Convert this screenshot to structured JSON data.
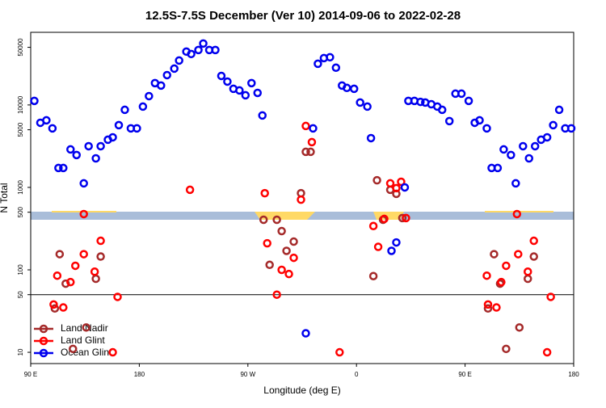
{
  "chart_data": {
    "type": "scatter",
    "title": "12.5S-7.5S December (Ver 10)   2014-09-06 to 2022-02-28",
    "x_label": "Longitude (deg E)",
    "y_label": "N Total",
    "log_y": true,
    "legend": "bottomleft",
    "hlines": [
      50
    ],
    "xlim": [
      90,
      540
    ],
    "xticks": [
      {
        "value": 90,
        "label": "90 E"
      },
      {
        "value": 180,
        "label": "180"
      },
      {
        "value": 270,
        "label": "90 W"
      },
      {
        "value": 360,
        "label": "0"
      },
      {
        "value": 450,
        "label": "90 E"
      },
      {
        "value": 540,
        "label": "180"
      }
    ],
    "ylim": [
      7.3,
      76000
    ],
    "yticks": [
      10,
      50,
      100,
      500,
      1000,
      5000,
      10000,
      50000
    ],
    "series": [
      {
        "name": "Land Nadir",
        "color": "#a52a2a",
        "x": [
          110,
          114,
          119,
          125,
          136,
          144,
          148,
          283,
          288,
          294,
          298,
          302,
          308,
          314,
          318,
          322,
          374,
          377,
          382,
          388,
          393,
          398,
          469,
          474,
          479,
          484,
          495,
          502,
          507
        ],
        "values": [
          34,
          155,
          68,
          11,
          20,
          78,
          145,
          405,
          115,
          405,
          295,
          170,
          220,
          850,
          2700,
          2700,
          84,
          1220,
          405,
          935,
          835,
          425,
          34,
          155,
          68,
          11,
          20,
          78,
          145
        ]
      },
      {
        "name": "Land Glint",
        "color": "#ff0000",
        "x": [
          134,
          112,
          123,
          127,
          109,
          117,
          134,
          143,
          148,
          162,
          158,
          222,
          284,
          286,
          294,
          298,
          304,
          308,
          314,
          318,
          323,
          346,
          374,
          378,
          383,
          388,
          393,
          397,
          401,
          468,
          480,
          484,
          469,
          476,
          493,
          494,
          502,
          507,
          521,
          518
        ],
        "values": [
          475,
          85,
          71,
          112,
          38,
          35,
          155,
          95,
          225,
          47,
          10,
          935,
          850,
          210,
          50,
          100,
          89,
          140,
          710,
          5560,
          3540,
          10,
          340,
          190,
          415,
          1120,
          980,
          1170,
          425,
          85,
          71,
          112,
          38,
          35,
          475,
          155,
          95,
          225,
          47,
          10
        ]
      },
      {
        "name": "Ocean Glint",
        "color": "#0000ee",
        "x": [
          93,
          98,
          103,
          108,
          113,
          117,
          123,
          128,
          134,
          138,
          144,
          148,
          154,
          158,
          163,
          168,
          173,
          178,
          183,
          188,
          193,
          198,
          203,
          209,
          213,
          219,
          223,
          229,
          233,
          238,
          243,
          248,
          253,
          258,
          263,
          268,
          273,
          278,
          282,
          318,
          324,
          328,
          333,
          338,
          343,
          348,
          352,
          358,
          363,
          369,
          372,
          400,
          389,
          393,
          403,
          408,
          413,
          417,
          422,
          427,
          431,
          437,
          442,
          447,
          453,
          458,
          462,
          468,
          472,
          477,
          482,
          488,
          492,
          498,
          503,
          508,
          513,
          518,
          523,
          528,
          533,
          538
        ],
        "values": [
          11200,
          6080,
          6510,
          5200,
          1720,
          1720,
          2890,
          2470,
          1120,
          3160,
          2250,
          3160,
          3790,
          4050,
          5690,
          8730,
          5200,
          5200,
          9550,
          12800,
          18400,
          17200,
          23000,
          27600,
          34600,
          44400,
          41500,
          46400,
          55600,
          46400,
          46400,
          22500,
          19200,
          15700,
          15000,
          13100,
          18400,
          14000,
          7460,
          17,
          5200,
          31600,
          37000,
          37900,
          28300,
          17200,
          16100,
          15700,
          10700,
          9550,
          3960,
          1000,
          170,
          215,
          11200,
          11200,
          10900,
          10700,
          10200,
          9550,
          8730,
          6370,
          13700,
          13700,
          11200,
          6080,
          6510,
          5200,
          1720,
          1720,
          2890,
          2470,
          1120,
          3160,
          2250,
          3160,
          3790,
          4050,
          5690,
          8730,
          5200,
          5200
        ]
      }
    ]
  }
}
